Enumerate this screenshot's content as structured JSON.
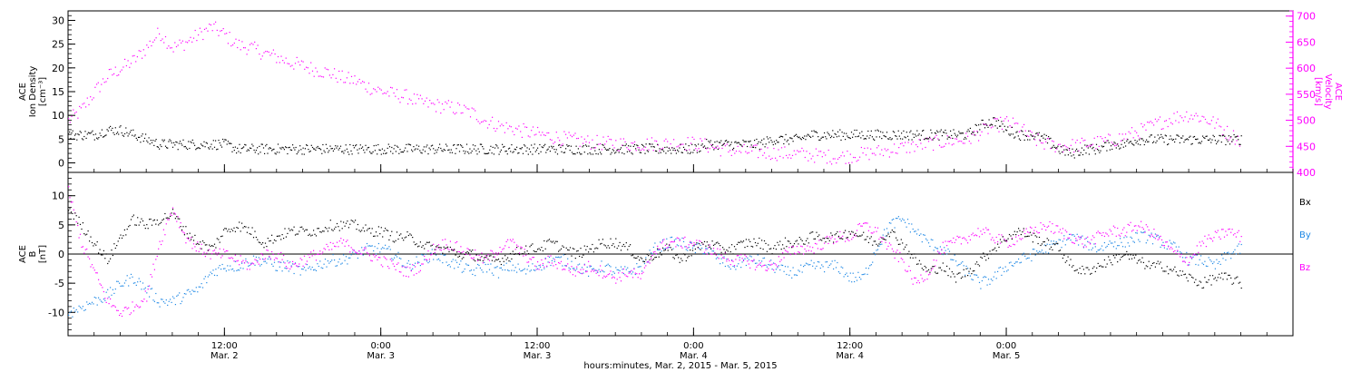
{
  "colors": {
    "density": "#000000",
    "velocity": "#ff00ff",
    "bx": "#000000",
    "by": "#1e88e5",
    "bz": "#ff00ff",
    "axis": "#000000"
  },
  "chart_data": [
    {
      "type": "scatter",
      "panel": "top",
      "ylabel_left": [
        "ACE",
        "Ion Density",
        "[cm⁻³]"
      ],
      "ylabel_right": [
        "ACE",
        "Velocity",
        "[km/s]"
      ],
      "ylim_left": [
        -2,
        32
      ],
      "ylim_right": [
        400,
        710
      ],
      "yticks_left": [
        0,
        5,
        10,
        15,
        20,
        25,
        30
      ],
      "yticks_right": [
        400,
        450,
        500,
        550,
        600,
        650,
        700
      ],
      "xlim_hours": [
        0,
        94
      ],
      "series": [
        {
          "axis": "left",
          "color_key": "density",
          "x": [
            0,
            1,
            2,
            3,
            4,
            5,
            6,
            7,
            8,
            9,
            10,
            11,
            12,
            13,
            14,
            15,
            16,
            17,
            18,
            19,
            20,
            21,
            22,
            23,
            24,
            25,
            26,
            27,
            28,
            29,
            30,
            31,
            32,
            33,
            34,
            35,
            36,
            37,
            38,
            39,
            40,
            41,
            42,
            43,
            44,
            45,
            46,
            47,
            48,
            49,
            50,
            51,
            52,
            53,
            54,
            55,
            56,
            57,
            58,
            59,
            60,
            61,
            62,
            63,
            64,
            65,
            66,
            67,
            68,
            69,
            70,
            71,
            72,
            73,
            74,
            75,
            76,
            77,
            78,
            79,
            80,
            81,
            82,
            83,
            84,
            85,
            86,
            87,
            88,
            89,
            90
          ],
          "y": [
            6,
            6,
            6,
            7,
            7,
            6,
            5,
            4,
            4,
            4,
            4,
            4,
            4,
            3,
            3,
            3,
            3,
            3,
            3,
            3,
            3,
            3,
            3,
            3,
            3,
            3,
            3,
            3,
            3,
            3,
            3,
            3,
            3,
            3,
            3,
            3,
            3,
            3,
            3,
            3,
            3,
            3,
            3,
            3,
            3,
            3,
            3,
            3,
            3,
            4,
            4,
            4,
            4,
            4,
            5,
            5,
            5,
            6,
            6,
            6,
            6,
            6,
            6,
            6,
            6,
            6,
            6,
            6,
            6,
            6,
            8,
            9,
            7,
            6,
            6,
            5,
            3,
            2,
            3,
            3,
            4,
            4,
            5,
            5,
            5,
            5,
            5,
            5,
            5,
            5,
            5
          ]
        },
        {
          "axis": "right",
          "color_key": "velocity",
          "x": [
            0,
            1,
            2,
            3,
            4,
            5,
            6,
            7,
            8,
            9,
            10,
            11,
            12,
            13,
            14,
            15,
            16,
            17,
            18,
            19,
            20,
            21,
            22,
            23,
            24,
            25,
            26,
            27,
            28,
            29,
            30,
            31,
            32,
            33,
            34,
            35,
            36,
            37,
            38,
            39,
            40,
            41,
            42,
            43,
            44,
            45,
            46,
            47,
            48,
            49,
            50,
            51,
            52,
            53,
            54,
            55,
            56,
            57,
            58,
            59,
            60,
            61,
            62,
            63,
            64,
            65,
            66,
            67,
            68,
            69,
            70,
            71,
            72,
            73,
            74,
            75,
            76,
            77,
            78,
            79,
            80,
            81,
            82,
            83,
            84,
            85,
            86,
            87,
            88,
            89,
            90
          ],
          "y": [
            500,
            520,
            555,
            585,
            600,
            615,
            640,
            670,
            640,
            650,
            665,
            680,
            665,
            645,
            640,
            630,
            622,
            612,
            605,
            598,
            592,
            582,
            577,
            565,
            557,
            550,
            546,
            535,
            530,
            527,
            522,
            515,
            500,
            491,
            485,
            480,
            474,
            470,
            466,
            462,
            459,
            457,
            456,
            455,
            455,
            456,
            456,
            457,
            456,
            452,
            446,
            443,
            441,
            440,
            438,
            437,
            436,
            434,
            432,
            430,
            433,
            436,
            440,
            444,
            448,
            452,
            456,
            459,
            462,
            464,
            478,
            490,
            497,
            487,
            465,
            455,
            452,
            452,
            455,
            458,
            462,
            469,
            478,
            488,
            499,
            507,
            512,
            506,
            495,
            476,
            462
          ]
        }
      ]
    },
    {
      "type": "scatter",
      "panel": "bottom",
      "ylabel_left": [
        "ACE",
        "B",
        "[nT]"
      ],
      "legend_labels": [
        "Bx",
        "By",
        "Bz"
      ],
      "legend_placement": "right",
      "ylim": [
        -14,
        14
      ],
      "yticks": [
        -10,
        -5,
        0,
        5,
        10
      ],
      "zero_line": true,
      "xlim_hours": [
        0,
        94
      ],
      "xticks": [
        {
          "hour": 12,
          "time": "12:00",
          "date": "Mar. 2"
        },
        {
          "hour": 24,
          "time": "0:00",
          "date": "Mar. 3"
        },
        {
          "hour": 36,
          "time": "12:00",
          "date": "Mar. 3"
        },
        {
          "hour": 48,
          "time": "0:00",
          "date": "Mar. 4"
        },
        {
          "hour": 60,
          "time": "12:00",
          "date": "Mar. 4"
        },
        {
          "hour": 72,
          "time": "0:00",
          "date": "Mar. 5"
        }
      ],
      "xlabel": "hours:minutes, Mar.  2, 2015 - Mar.  5, 2015",
      "series": [
        {
          "name": "Bx",
          "color_key": "bx",
          "x": [
            0,
            1,
            2,
            3,
            4,
            5,
            6,
            7,
            8,
            9,
            10,
            11,
            12,
            13,
            14,
            15,
            16,
            17,
            18,
            19,
            20,
            21,
            22,
            23,
            24,
            25,
            26,
            27,
            28,
            29,
            30,
            31,
            32,
            33,
            34,
            35,
            36,
            37,
            38,
            39,
            40,
            41,
            42,
            43,
            44,
            45,
            46,
            47,
            48,
            49,
            50,
            51,
            52,
            53,
            54,
            55,
            56,
            57,
            58,
            59,
            60,
            61,
            62,
            63,
            64,
            65,
            66,
            67,
            68,
            69,
            70,
            71,
            72,
            73,
            74,
            75,
            76,
            77,
            78,
            79,
            80,
            81,
            82,
            83,
            84,
            85,
            86,
            87,
            88,
            89,
            90
          ],
          "y": [
            8,
            5,
            2,
            -1,
            3,
            6,
            5,
            6,
            7,
            4,
            2,
            1,
            4,
            5,
            4,
            2,
            3,
            4,
            4,
            4,
            5,
            5,
            5,
            4,
            4,
            3,
            3,
            2,
            1,
            1,
            0,
            0,
            -1,
            -1,
            0,
            1,
            1,
            2,
            1,
            0,
            1,
            2,
            2,
            1,
            -1,
            0,
            1,
            -1,
            1,
            2,
            1,
            1,
            2,
            2,
            1,
            2,
            2,
            3,
            3,
            3,
            4,
            3,
            2,
            4,
            2,
            -1,
            -3,
            -2,
            -4,
            -3,
            -1,
            1,
            3,
            4,
            3,
            2,
            1,
            -2,
            -3,
            -2,
            -1,
            0,
            -1,
            -2,
            -2,
            -3,
            -4,
            -5,
            -4,
            -4,
            -5
          ]
        },
        {
          "name": "By",
          "color_key": "by",
          "x": [
            0,
            1,
            2,
            3,
            4,
            5,
            6,
            7,
            8,
            9,
            10,
            11,
            12,
            13,
            14,
            15,
            16,
            17,
            18,
            19,
            20,
            21,
            22,
            23,
            24,
            25,
            26,
            27,
            28,
            29,
            30,
            31,
            32,
            33,
            34,
            35,
            36,
            37,
            38,
            39,
            40,
            41,
            42,
            43,
            44,
            45,
            46,
            47,
            48,
            49,
            50,
            51,
            52,
            53,
            54,
            55,
            56,
            57,
            58,
            59,
            60,
            61,
            62,
            63,
            64,
            65,
            66,
            67,
            68,
            69,
            70,
            71,
            72,
            73,
            74,
            75,
            76,
            77,
            78,
            79,
            80,
            81,
            82,
            83,
            84,
            85,
            86,
            87,
            88,
            89,
            90
          ],
          "y": [
            -10,
            -9,
            -8,
            -7,
            -5,
            -4,
            -6,
            -8,
            -8,
            -7,
            -6,
            -3,
            -2,
            -2,
            -1,
            -1,
            -2,
            -2,
            -3,
            -2,
            -1,
            -1,
            0,
            1,
            1,
            0,
            -2,
            -1,
            0,
            -1,
            -2,
            -3,
            -2,
            -3,
            -2,
            -3,
            -2,
            -1,
            -1,
            -2,
            -3,
            -2,
            -3,
            -3,
            -2,
            1,
            2,
            2,
            1,
            1,
            -1,
            -2,
            -1,
            -1,
            -2,
            -3,
            -3,
            -2,
            -2,
            -2,
            -4,
            -4,
            1,
            5,
            6,
            4,
            2,
            1,
            -1,
            -3,
            -5,
            -4,
            -2,
            -1,
            0,
            1,
            2,
            3,
            2,
            1,
            2,
            2,
            3,
            3,
            2,
            1,
            -1,
            -1,
            -2,
            0,
            1
          ]
        },
        {
          "name": "Bz",
          "color_key": "bz",
          "x": [
            0,
            1,
            2,
            3,
            4,
            5,
            6,
            7,
            8,
            9,
            10,
            11,
            12,
            13,
            14,
            15,
            16,
            17,
            18,
            19,
            20,
            21,
            22,
            23,
            24,
            25,
            26,
            27,
            28,
            29,
            30,
            31,
            32,
            33,
            34,
            35,
            36,
            37,
            38,
            39,
            40,
            41,
            42,
            43,
            44,
            45,
            46,
            47,
            48,
            49,
            50,
            51,
            52,
            53,
            54,
            55,
            56,
            57,
            58,
            59,
            60,
            61,
            62,
            63,
            64,
            65,
            66,
            67,
            68,
            69,
            70,
            71,
            72,
            73,
            74,
            75,
            76,
            77,
            78,
            79,
            80,
            81,
            82,
            83,
            84,
            85,
            86,
            87,
            88,
            89,
            90
          ],
          "y": [
            11,
            2,
            -3,
            -8,
            -10,
            -9,
            -7,
            2,
            8,
            3,
            1,
            0,
            0,
            -1,
            -2,
            0,
            0,
            -2,
            -1,
            0,
            1,
            2,
            1,
            0,
            -1,
            -2,
            -3,
            -2,
            1,
            2,
            1,
            0,
            -1,
            1,
            2,
            0,
            -2,
            -1,
            -2,
            -3,
            -2,
            -3,
            -4,
            -3,
            -4,
            1,
            2,
            2,
            2,
            1,
            0,
            -1,
            -1,
            -2,
            -2,
            0,
            1,
            1,
            2,
            3,
            3,
            5,
            4,
            1,
            -1,
            -5,
            -3,
            1,
            2,
            3,
            4,
            3,
            2,
            3,
            4,
            5,
            4,
            3,
            2,
            3,
            4,
            4,
            5,
            4,
            2,
            0,
            -1,
            2,
            3,
            4,
            3
          ]
        }
      ]
    }
  ]
}
